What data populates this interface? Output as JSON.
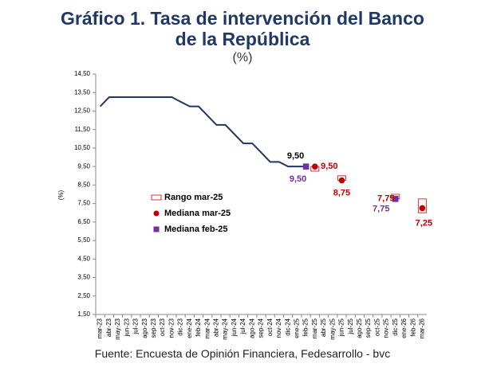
{
  "chart_data": {
    "type": "line",
    "title": "Gráfico 1. Tasa de intervención del Banco de la República",
    "subtitle": "(%)",
    "y_label": "(%)",
    "source": "Fuente: Encuesta de Opinión Financiera, Fedesarrollo - bvc",
    "categories": [
      "mar-23",
      "abr-23",
      "may-23",
      "jun-23",
      "jul-23",
      "ago-23",
      "sep-23",
      "oct-23",
      "nov-23",
      "dic-23",
      "ene-24",
      "feb-24",
      "mar-24",
      "abr-24",
      "may-24",
      "jun-24",
      "jul-24",
      "ago-24",
      "sep-24",
      "oct-24",
      "nov-24",
      "dic-24",
      "ene-25",
      "feb-25",
      "mar-25",
      "abr-25",
      "may-25",
      "jun-25",
      "jul-25",
      "ago-25",
      "sep-25",
      "oct-25",
      "nov-25",
      "dic-25",
      "ene-26",
      "feb-26",
      "mar-26"
    ],
    "ylim": [
      1.5,
      14.5
    ],
    "yticks": [
      {
        "value": 1.5,
        "label": "1,50"
      },
      {
        "value": 2.5,
        "label": "2,50"
      },
      {
        "value": 3.5,
        "label": "3,50"
      },
      {
        "value": 4.5,
        "label": "4,50"
      },
      {
        "value": 5.5,
        "label": "5,50"
      },
      {
        "value": 6.5,
        "label": "6,50"
      },
      {
        "value": 7.5,
        "label": "7,50"
      },
      {
        "value": 8.5,
        "label": "8,50"
      },
      {
        "value": 9.5,
        "label": "9,50"
      },
      {
        "value": 10.5,
        "label": "10,50"
      },
      {
        "value": 11.5,
        "label": "11,50"
      },
      {
        "value": 12.5,
        "label": "12,50"
      },
      {
        "value": 13.5,
        "label": "13,50"
      },
      {
        "value": 14.5,
        "label": "14,50"
      }
    ],
    "series": [
      {
        "kind": "line",
        "color": "#1f3864",
        "values": [
          12.75,
          13.25,
          13.25,
          13.25,
          13.25,
          13.25,
          13.25,
          13.25,
          13.25,
          13.0,
          12.75,
          12.75,
          12.25,
          11.75,
          11.75,
          11.25,
          10.75,
          10.75,
          10.25,
          9.75,
          9.75,
          9.5,
          9.5,
          9.5,
          null,
          null,
          null,
          null,
          null,
          null,
          null,
          null,
          null,
          null,
          null,
          null,
          null
        ],
        "value_labels": [
          null,
          null,
          null,
          null,
          null,
          null,
          null,
          null,
          null,
          null,
          null,
          null,
          null,
          null,
          null,
          null,
          null,
          null,
          null,
          null,
          null,
          null,
          null,
          "9,50",
          null,
          null,
          null,
          null,
          null,
          null,
          null,
          null,
          null,
          null,
          null,
          null,
          null
        ]
      },
      {
        "kind": "range",
        "name": "Rango mar-25",
        "color": "#e03030",
        "low": [
          null,
          null,
          null,
          null,
          null,
          null,
          null,
          null,
          null,
          null,
          null,
          null,
          null,
          null,
          null,
          null,
          null,
          null,
          null,
          null,
          null,
          null,
          null,
          null,
          9.25,
          null,
          null,
          8.75,
          null,
          null,
          null,
          null,
          null,
          7.75,
          null,
          null,
          7.0
        ],
        "high": [
          null,
          null,
          null,
          null,
          null,
          null,
          null,
          null,
          null,
          null,
          null,
          null,
          null,
          null,
          null,
          null,
          null,
          null,
          null,
          null,
          null,
          null,
          null,
          null,
          9.5,
          null,
          null,
          9.0,
          null,
          null,
          null,
          null,
          null,
          8.0,
          null,
          null,
          7.75
        ]
      },
      {
        "kind": "marker",
        "marker": "circle",
        "name": "Mediana mar-25",
        "color": "#c00000",
        "values": [
          null,
          null,
          null,
          null,
          null,
          null,
          null,
          null,
          null,
          null,
          null,
          null,
          null,
          null,
          null,
          null,
          null,
          null,
          null,
          null,
          null,
          null,
          null,
          null,
          9.5,
          null,
          null,
          8.75,
          null,
          null,
          null,
          null,
          null,
          7.75,
          null,
          null,
          7.25
        ],
        "value_labels": [
          null,
          null,
          null,
          null,
          null,
          null,
          null,
          null,
          null,
          null,
          null,
          null,
          null,
          null,
          null,
          null,
          null,
          null,
          null,
          null,
          null,
          null,
          null,
          null,
          "9,50",
          null,
          null,
          "8,75",
          null,
          null,
          null,
          null,
          null,
          "7,75",
          null,
          null,
          "7,25"
        ]
      },
      {
        "kind": "marker",
        "marker": "square",
        "name": "Mediana feb-25",
        "color": "#7030a0",
        "values": [
          null,
          null,
          null,
          null,
          null,
          null,
          null,
          null,
          null,
          null,
          null,
          null,
          null,
          null,
          null,
          null,
          null,
          null,
          null,
          null,
          null,
          null,
          null,
          9.5,
          null,
          null,
          null,
          null,
          null,
          null,
          null,
          null,
          null,
          7.75,
          null,
          null,
          null
        ],
        "value_labels": [
          null,
          null,
          null,
          null,
          null,
          null,
          null,
          null,
          null,
          null,
          null,
          null,
          null,
          null,
          null,
          null,
          null,
          null,
          null,
          null,
          null,
          null,
          null,
          "9,50",
          null,
          null,
          null,
          null,
          null,
          null,
          null,
          null,
          null,
          "7,75",
          null,
          null,
          null
        ]
      }
    ]
  }
}
